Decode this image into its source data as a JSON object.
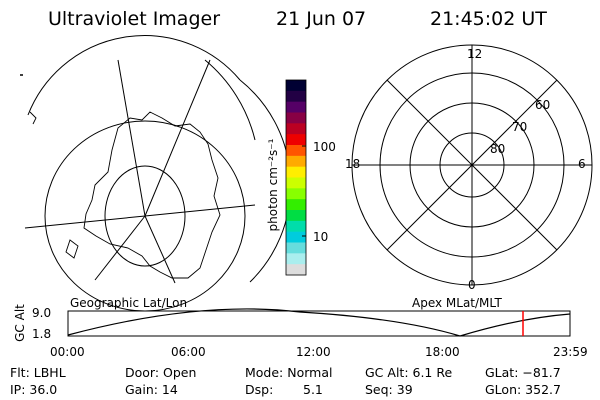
{
  "header": {
    "title": "Ultraviolet Imager",
    "date": "21 Jun 07",
    "time": "21:45:02 UT"
  },
  "geo_map": {
    "caption": "Geographic Lat/Lon"
  },
  "colorbar": {
    "unit_label": "photon cm⁻²s⁻¹",
    "ticks": [
      "100",
      "10"
    ],
    "colors": [
      "#000033",
      "#220044",
      "#550066",
      "#880044",
      "#bb0022",
      "#ee0000",
      "#ff5500",
      "#ffaa00",
      "#ffee00",
      "#ccff00",
      "#88ff00",
      "#33ee00",
      "#00dd44",
      "#00ddaa",
      "#00ccdd",
      "#66dddd",
      "#aaeeee",
      "#dddddd"
    ]
  },
  "polar_grid": {
    "caption": "Apex MLat/MLT",
    "mlt_labels": {
      "top": "12",
      "left": "18",
      "right": "6",
      "bottom": "0"
    },
    "lat_labels": [
      "60",
      "70",
      "80"
    ]
  },
  "altitude_plot": {
    "y_label": "GC Alt",
    "y_ticks": [
      "9.0",
      "1.8"
    ],
    "x_ticks": [
      "00:00",
      "06:00",
      "12:00",
      "18:00",
      "23:59"
    ],
    "marker_color": "#ff0000"
  },
  "info": {
    "filter": "Flt: LBHL",
    "ip": "IP: 36.0",
    "door": "Door: Open",
    "gain": "Gain: 14",
    "mode": "Mode: Normal",
    "dsp_label": "Dsp:",
    "dsp_value": "5.1",
    "gc_alt": "GC Alt: 6.1 Re",
    "seq": "Seq: 39",
    "glat": "GLat: −81.7",
    "glon": "GLon: 352.7"
  }
}
